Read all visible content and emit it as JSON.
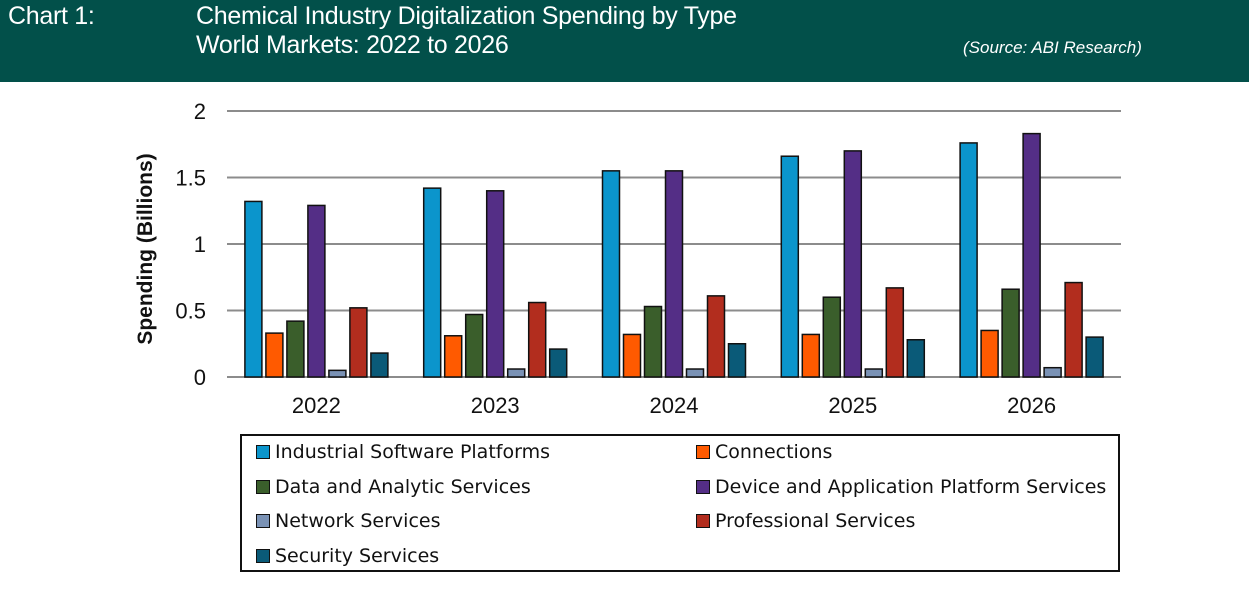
{
  "header": {
    "chart_label": "Chart 1:",
    "title_line1": "Chemical Industry Digitalization Spending by Type",
    "title_line2": "World Markets: 2022 to 2026",
    "source": "(Source: ABI Research)",
    "background_color": "#02504a"
  },
  "chart_data": {
    "type": "bar",
    "title": "Chemical Industry Digitalization Spending by Type",
    "subtitle": "World Markets: 2022 to 2026",
    "xlabel": "",
    "ylabel": "Spending (Billions)",
    "ylim": [
      0,
      2
    ],
    "yticks": [
      "0",
      "0.5",
      "1",
      "1.5",
      "2"
    ],
    "ytick_values": [
      0,
      0.5,
      1,
      1.5,
      2
    ],
    "grid": true,
    "legend_position": "bottom",
    "categories": [
      "2022",
      "2023",
      "2024",
      "2025",
      "2026"
    ],
    "series": [
      {
        "name": "Industrial Software Platforms",
        "color": "#0b95cc",
        "values": [
          1.32,
          1.42,
          1.55,
          1.66,
          1.76
        ]
      },
      {
        "name": "Connections",
        "color": "#ff5a00",
        "values": [
          0.33,
          0.31,
          0.32,
          0.32,
          0.35
        ]
      },
      {
        "name": "Data and Analytic Services",
        "color": "#3a5e2b",
        "values": [
          0.42,
          0.47,
          0.53,
          0.6,
          0.66
        ]
      },
      {
        "name": "Device and Application Platform Services",
        "color": "#542e86",
        "values": [
          1.29,
          1.4,
          1.55,
          1.7,
          1.83
        ]
      },
      {
        "name": "Network Services",
        "color": "#7a92b5",
        "values": [
          0.05,
          0.06,
          0.06,
          0.06,
          0.07
        ]
      },
      {
        "name": "Professional Services",
        "color": "#b22d1e",
        "values": [
          0.52,
          0.56,
          0.61,
          0.67,
          0.71
        ]
      },
      {
        "name": "Security Services",
        "color": "#0a5a78",
        "values": [
          0.18,
          0.21,
          0.25,
          0.28,
          0.3
        ]
      }
    ]
  }
}
